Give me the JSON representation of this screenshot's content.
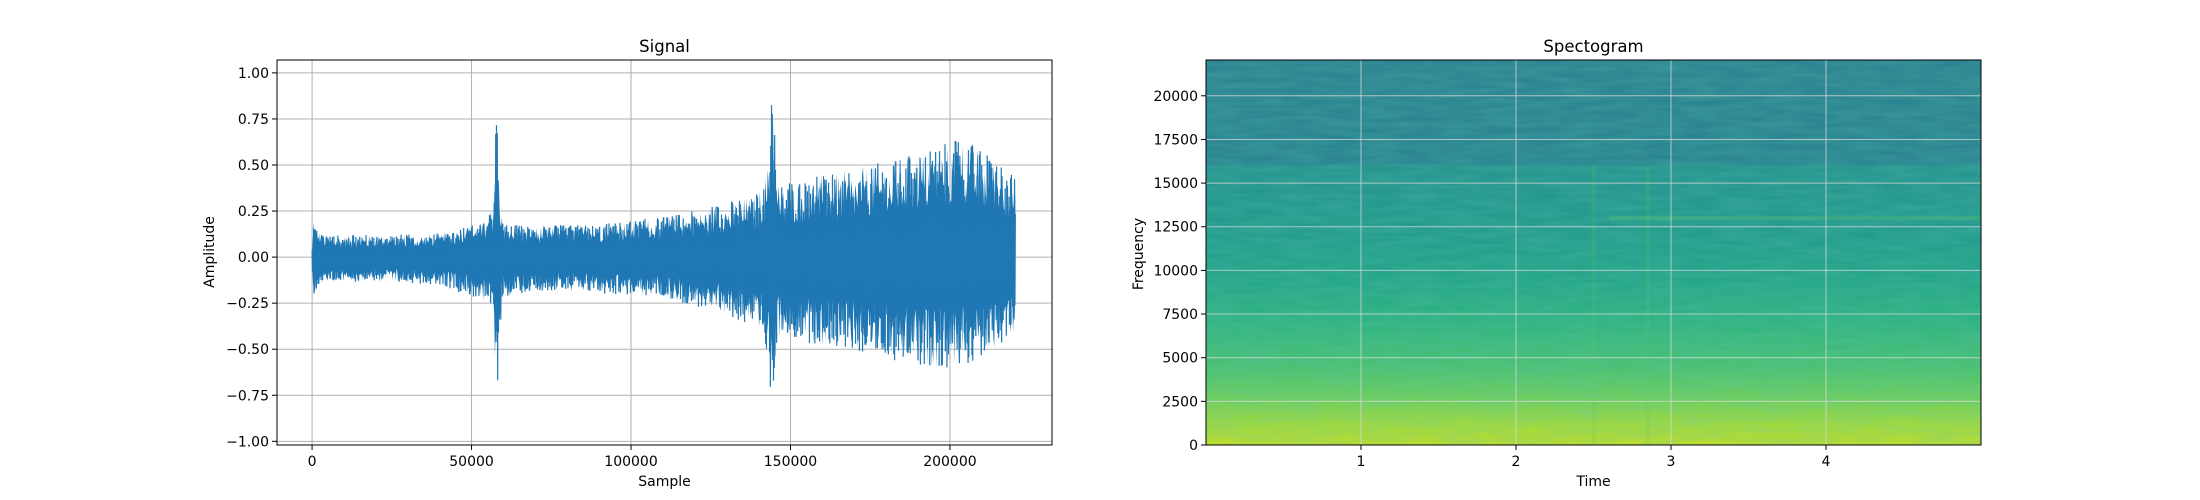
{
  "chart_data": [
    {
      "type": "line",
      "title": "Signal",
      "xlabel": "Sample",
      "ylabel": "Amplitude",
      "xlim": [
        -11000,
        232000
      ],
      "ylim": [
        -1.02,
        1.07
      ],
      "xticks": [
        0,
        50000,
        100000,
        150000,
        200000
      ],
      "xtick_labels": [
        "0",
        "50000",
        "100000",
        "150000",
        "200000"
      ],
      "yticks": [
        -1.0,
        -0.75,
        -0.5,
        -0.25,
        0.0,
        0.25,
        0.5,
        0.75,
        1.0
      ],
      "ytick_labels": [
        "−1.00",
        "−0.75",
        "−0.50",
        "−0.25",
        "0.00",
        "0.25",
        "0.50",
        "0.75",
        "1.00"
      ],
      "grid": true,
      "series": [
        {
          "color": "#1f77b4",
          "envelope_x": [
            0,
            500,
            1500,
            5000,
            20000,
            40000,
            55000,
            57000,
            57800,
            58800,
            60000,
            70000,
            90000,
            110000,
            120000,
            130000,
            140000,
            143000,
            144500,
            145500,
            147000,
            150000,
            160000,
            170000,
            180000,
            190000,
            200000,
            205000,
            210000,
            215000,
            220000
          ],
          "envelope_upper": [
            0.04,
            0.25,
            0.15,
            0.12,
            0.12,
            0.13,
            0.2,
            0.3,
            0.84,
            0.3,
            0.18,
            0.17,
            0.18,
            0.22,
            0.25,
            0.3,
            0.35,
            0.5,
            0.98,
            0.45,
            0.4,
            0.42,
            0.45,
            0.48,
            0.52,
            0.58,
            0.62,
            0.66,
            0.58,
            0.55,
            0.43
          ],
          "envelope_lower": [
            -0.04,
            -0.23,
            -0.17,
            -0.14,
            -0.13,
            -0.15,
            -0.25,
            -0.35,
            -0.88,
            -0.4,
            -0.22,
            -0.18,
            -0.2,
            -0.22,
            -0.27,
            -0.32,
            -0.38,
            -0.55,
            -0.92,
            -0.5,
            -0.42,
            -0.45,
            -0.48,
            -0.52,
            -0.55,
            -0.6,
            -0.6,
            -0.58,
            -0.55,
            -0.48,
            -0.42
          ],
          "n_samples": 220500
        }
      ]
    },
    {
      "type": "heatmap",
      "title": "Spectogram",
      "xlabel": "Time",
      "ylabel": "Frequency",
      "xlim": [
        0,
        5.0
      ],
      "ylim": [
        0,
        22050
      ],
      "xticks": [
        1,
        2,
        3,
        4
      ],
      "xtick_labels": [
        "1",
        "2",
        "3",
        "4"
      ],
      "yticks": [
        0,
        2500,
        5000,
        7500,
        10000,
        12500,
        15000,
        17500,
        20000
      ],
      "ytick_labels": [
        "0",
        "2500",
        "5000",
        "7500",
        "10000",
        "12500",
        "15000",
        "17500",
        "20000"
      ],
      "grid": true,
      "colormap": "viridis",
      "band_cutoff_hz": 16000,
      "bright_line_hz": 13000,
      "vertical_features_time": [
        2.5,
        2.85
      ]
    }
  ]
}
